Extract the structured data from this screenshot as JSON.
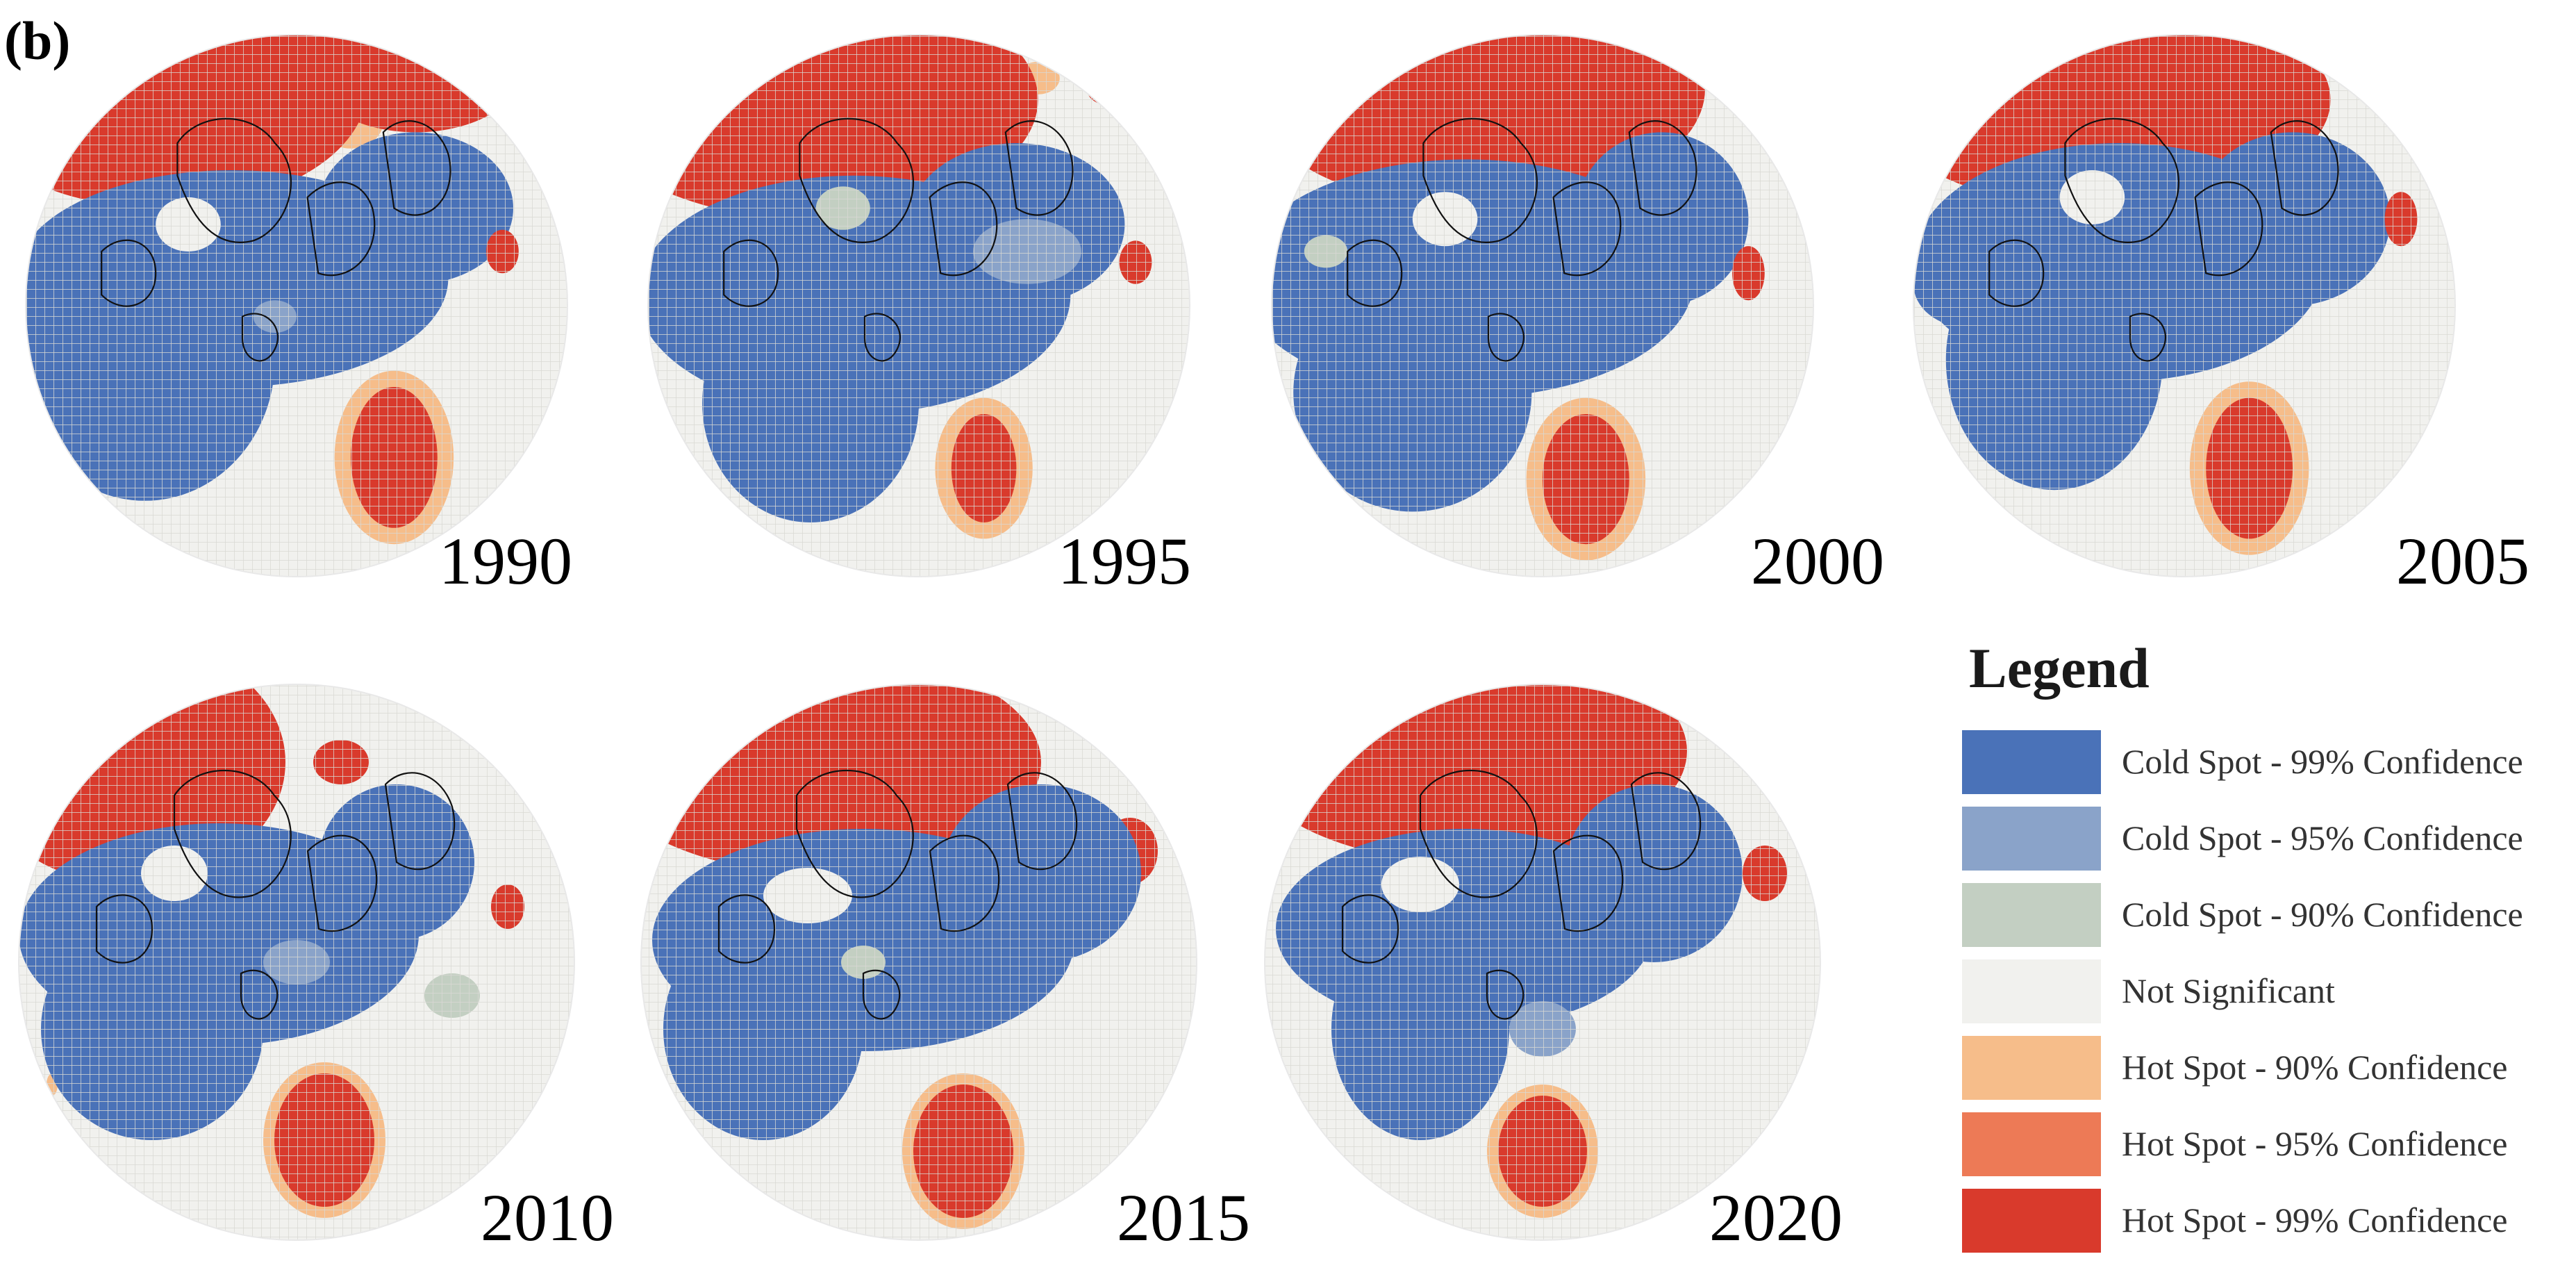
{
  "panel_label": "(b)",
  "maps": [
    {
      "year": "1990"
    },
    {
      "year": "1995"
    },
    {
      "year": "2000"
    },
    {
      "year": "2005"
    },
    {
      "year": "2010"
    },
    {
      "year": "2015"
    },
    {
      "year": "2020"
    }
  ],
  "legend": {
    "title": "Legend",
    "items": [
      {
        "label": "Cold Spot - 99% Confidence",
        "color": "#4a72b8"
      },
      {
        "label": "Cold Spot - 95% Confidence",
        "color": "#8aa3c9"
      },
      {
        "label": "Cold Spot - 90% Confidence",
        "color": "#c3cfc2"
      },
      {
        "label": "Not Significant",
        "color": "#f1f1ee"
      },
      {
        "label": "Hot Spot - 90% Confidence",
        "color": "#f6bd8a"
      },
      {
        "label": "Hot Spot - 95% Confidence",
        "color": "#ed7a56"
      },
      {
        "label": "Hot Spot - 99% Confidence",
        "color": "#d93a2c"
      }
    ]
  }
}
